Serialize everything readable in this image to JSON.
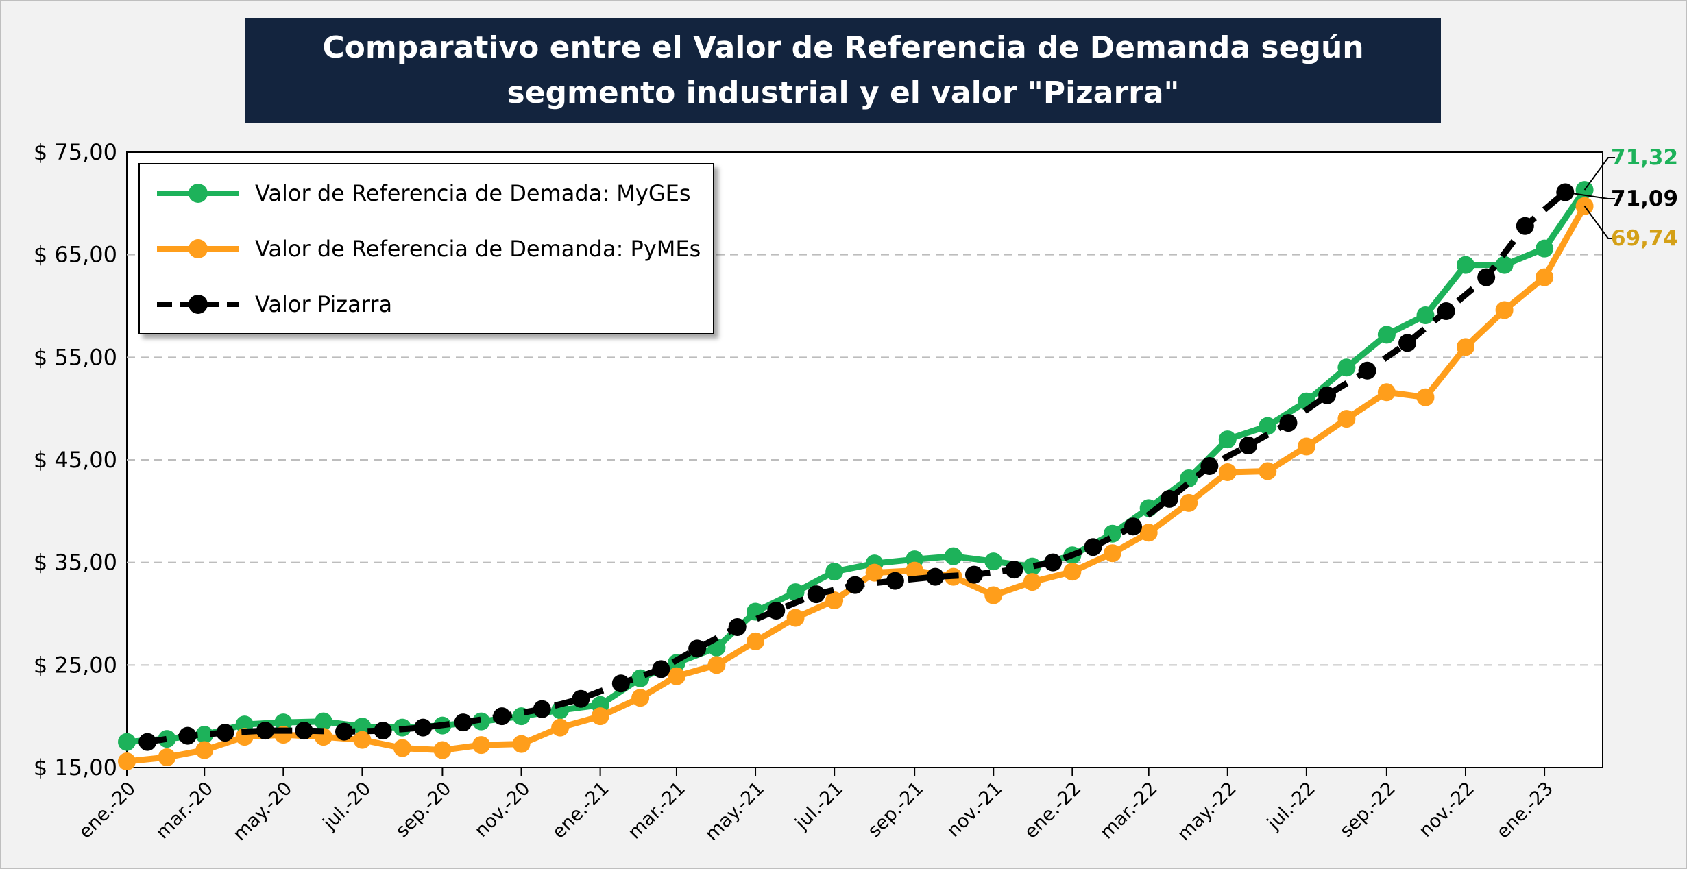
{
  "title": "Comparativo entre el Valor de Referencia de Demanda según segmento industrial y el valor \"Pizarra\"",
  "colors": {
    "myges": "#1db25a",
    "pymes": "#ff9e1b",
    "pizarra": "#000000",
    "title_bg": "#13243e",
    "pymes_label": "#d4a017"
  },
  "legend": {
    "items": [
      {
        "label": "Valor de Referencia de Demada: MyGEs",
        "series": "myges"
      },
      {
        "label": "Valor de Referencia de Demanda: PyMEs",
        "series": "pymes"
      },
      {
        "label": "Valor Pizarra",
        "series": "pizarra"
      }
    ]
  },
  "end_labels": {
    "myges": "71,32",
    "pizarra": "71,09",
    "pymes": "69,74"
  },
  "chart_data": {
    "type": "line",
    "title": "Comparativo entre el Valor de Referencia de Demanda según segmento industrial y el valor \"Pizarra\"",
    "xlabel": "",
    "ylabel": "",
    "ylim": [
      15,
      75
    ],
    "y_ticks": [
      "$ 15,00",
      "$ 25,00",
      "$ 35,00",
      "$ 45,00",
      "$ 55,00",
      "$ 65,00",
      "$ 75,00"
    ],
    "x_ticks": [
      "ene.-20",
      "mar.-20",
      "may.-20",
      "jul.-20",
      "sep.-20",
      "nov.-20",
      "ene.-21",
      "mar.-21",
      "may.-21",
      "jul.-21",
      "sep.-21",
      "nov.-21",
      "ene.-22",
      "mar.-22",
      "may.-22",
      "jul.-22",
      "sep.-22",
      "nov.-22",
      "ene.-23"
    ],
    "grid": "horizontal dashed",
    "legend_position": "top-left",
    "series": [
      {
        "name": "Valor de Referencia de Demada: MyGEs",
        "style": "solid",
        "points": [
          [
            "2020-01-01",
            17.5
          ],
          [
            "2020-02-01",
            17.8
          ],
          [
            "2020-03-01",
            18.2
          ],
          [
            "2020-04-01",
            19.2
          ],
          [
            "2020-05-01",
            19.4
          ],
          [
            "2020-06-01",
            19.5
          ],
          [
            "2020-07-01",
            19.0
          ],
          [
            "2020-08-01",
            18.9
          ],
          [
            "2020-09-01",
            19.1
          ],
          [
            "2020-10-01",
            19.5
          ],
          [
            "2020-11-01",
            20.0
          ],
          [
            "2020-12-01",
            20.6
          ],
          [
            "2021-01-01",
            21.1
          ],
          [
            "2021-02-01",
            23.7
          ],
          [
            "2021-03-01",
            25.2
          ],
          [
            "2021-04-01",
            26.7
          ],
          [
            "2021-05-01",
            30.2
          ],
          [
            "2021-06-01",
            32.1
          ],
          [
            "2021-07-01",
            34.1
          ],
          [
            "2021-08-01",
            34.9
          ],
          [
            "2021-09-01",
            35.3
          ],
          [
            "2021-10-01",
            35.6
          ],
          [
            "2021-11-01",
            35.1
          ],
          [
            "2021-12-01",
            34.6
          ],
          [
            "2022-01-01",
            35.7
          ],
          [
            "2022-02-01",
            37.8
          ],
          [
            "2022-03-01",
            40.3
          ],
          [
            "2022-04-01",
            43.2
          ],
          [
            "2022-05-01",
            47.0
          ],
          [
            "2022-06-01",
            48.3
          ],
          [
            "2022-07-01",
            50.7
          ],
          [
            "2022-08-01",
            54.0
          ],
          [
            "2022-09-01",
            57.2
          ],
          [
            "2022-10-01",
            59.1
          ],
          [
            "2022-11-01",
            64.0
          ],
          [
            "2022-12-01",
            64.0
          ],
          [
            "2023-01-01",
            65.6
          ],
          [
            "2023-02-01",
            71.32
          ]
        ]
      },
      {
        "name": "Valor de Referencia de Demanda: PyMEs",
        "style": "solid",
        "points": [
          [
            "2020-01-01",
            15.6
          ],
          [
            "2020-02-01",
            16.0
          ],
          [
            "2020-03-01",
            16.7
          ],
          [
            "2020-04-01",
            18.0
          ],
          [
            "2020-05-01",
            18.2
          ],
          [
            "2020-06-01",
            18.0
          ],
          [
            "2020-07-01",
            17.7
          ],
          [
            "2020-08-01",
            16.9
          ],
          [
            "2020-09-01",
            16.7
          ],
          [
            "2020-10-01",
            17.2
          ],
          [
            "2020-11-01",
            17.3
          ],
          [
            "2020-12-01",
            18.9
          ],
          [
            "2021-01-01",
            20.0
          ],
          [
            "2021-02-01",
            21.8
          ],
          [
            "2021-03-01",
            23.9
          ],
          [
            "2021-04-01",
            25.0
          ],
          [
            "2021-05-01",
            27.3
          ],
          [
            "2021-06-01",
            29.6
          ],
          [
            "2021-07-01",
            31.3
          ],
          [
            "2021-08-01",
            34.0
          ],
          [
            "2021-09-01",
            34.2
          ],
          [
            "2021-10-01",
            33.6
          ],
          [
            "2021-11-01",
            31.8
          ],
          [
            "2021-12-01",
            33.1
          ],
          [
            "2022-01-01",
            34.1
          ],
          [
            "2022-02-01",
            35.9
          ],
          [
            "2022-03-01",
            37.9
          ],
          [
            "2022-04-01",
            40.8
          ],
          [
            "2022-05-01",
            43.8
          ],
          [
            "2022-06-01",
            43.9
          ],
          [
            "2022-07-01",
            46.3
          ],
          [
            "2022-08-01",
            49.0
          ],
          [
            "2022-09-01",
            51.6
          ],
          [
            "2022-10-01",
            51.1
          ],
          [
            "2022-11-01",
            56.0
          ],
          [
            "2022-12-01",
            59.6
          ],
          [
            "2023-01-01",
            62.8
          ],
          [
            "2023-02-01",
            69.74
          ]
        ]
      },
      {
        "name": "Valor Pizarra",
        "style": "dashed",
        "points": [
          [
            "2020-01-17",
            17.5
          ],
          [
            "2020-02-17",
            18.1
          ],
          [
            "2020-03-17",
            18.4
          ],
          [
            "2020-04-17",
            18.6
          ],
          [
            "2020-05-17",
            18.6
          ],
          [
            "2020-06-17",
            18.5
          ],
          [
            "2020-07-17",
            18.6
          ],
          [
            "2020-08-17",
            18.9
          ],
          [
            "2020-09-17",
            19.4
          ],
          [
            "2020-10-17",
            20.0
          ],
          [
            "2020-11-17",
            20.7
          ],
          [
            "2020-12-17",
            21.7
          ],
          [
            "2021-01-17",
            23.2
          ],
          [
            "2021-02-17",
            24.6
          ],
          [
            "2021-03-17",
            26.6
          ],
          [
            "2021-04-17",
            28.7
          ],
          [
            "2021-05-17",
            30.3
          ],
          [
            "2021-06-17",
            31.9
          ],
          [
            "2021-07-17",
            32.8
          ],
          [
            "2021-08-17",
            33.2
          ],
          [
            "2021-09-17",
            33.6
          ],
          [
            "2021-10-17",
            33.8
          ],
          [
            "2021-11-17",
            34.3
          ],
          [
            "2021-12-17",
            35.0
          ],
          [
            "2022-01-17",
            36.5
          ],
          [
            "2022-02-17",
            38.5
          ],
          [
            "2022-03-17",
            41.2
          ],
          [
            "2022-04-17",
            44.4
          ],
          [
            "2022-05-17",
            46.4
          ],
          [
            "2022-06-17",
            48.6
          ],
          [
            "2022-07-17",
            51.3
          ],
          [
            "2022-08-17",
            53.7
          ],
          [
            "2022-09-17",
            56.4
          ],
          [
            "2022-10-17",
            59.5
          ],
          [
            "2022-11-17",
            62.8
          ],
          [
            "2022-12-17",
            67.8
          ],
          [
            "2023-01-17",
            71.09
          ]
        ]
      }
    ]
  }
}
